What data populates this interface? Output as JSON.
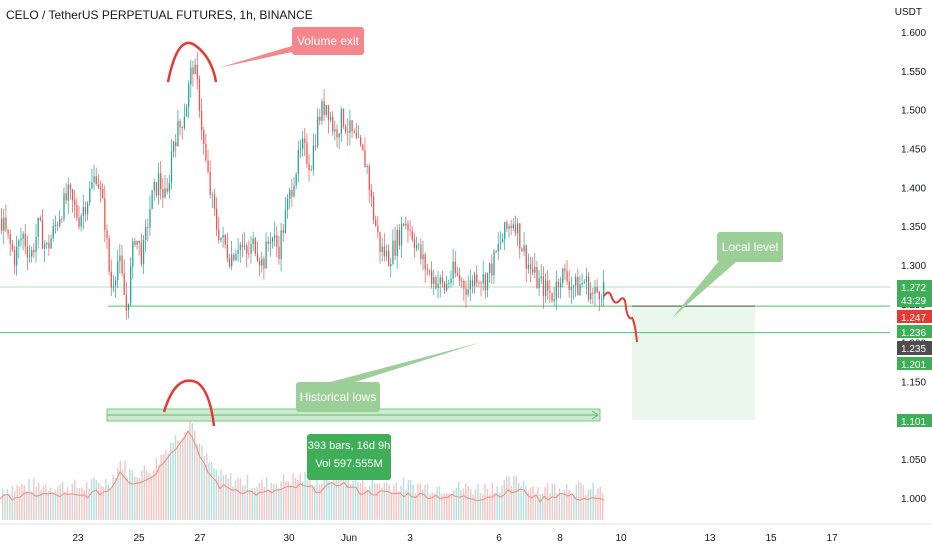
{
  "header": {
    "title": "CELO / TetherUS PERPETUAL FUTURES, 1h, BINANCE",
    "currency": "USDT"
  },
  "colors": {
    "up": "#26a69a",
    "down": "#ef5350",
    "level_line": "#5cbf6b",
    "callout_red": "#f4868c",
    "callout_green": "#9ccf97",
    "stat_box": "#3fae59",
    "price_last": "#e53935",
    "price_gray": "#4d4d4d",
    "price_green": "#3fae59"
  },
  "annotations": {
    "volume_exit": "Volume exit",
    "local_level": "Local level",
    "historical_lows": "Historical lows",
    "range_bars": "393 bars, 16d 9h",
    "range_vol": "Vol 597.555M"
  },
  "price_labels": {
    "p1": "1.272",
    "countdown": "43:29",
    "p2": "1.247",
    "p3": "1.236",
    "p4": "1.235",
    "p5": "1.201",
    "p6": "1.101"
  },
  "chart_data": {
    "type": "candlestick",
    "title": "CELO / TetherUS PERPETUAL FUTURES, 1h, BINANCE",
    "y_unit": "USDT",
    "ylim": [
      0.975,
      1.61
    ],
    "yticks": [
      1.0,
      1.05,
      1.1,
      1.15,
      1.2,
      1.25,
      1.3,
      1.35,
      1.4,
      1.45,
      1.5,
      1.55,
      1.6
    ],
    "ytick_labels": [
      "1.000",
      "1.050",
      "1.100",
      "1.150",
      "1.200",
      "1.250",
      "1.300",
      "1.350",
      "1.400",
      "1.450",
      "1.500",
      "1.550",
      "1.600"
    ],
    "xticks": [
      "23",
      "25",
      "27",
      "30",
      "Jun",
      "3",
      "6",
      "8",
      "10",
      "13",
      "15",
      "17"
    ],
    "price_path": [
      [
        0,
        1.36
      ],
      [
        8,
        1.33
      ],
      [
        14,
        1.31
      ],
      [
        22,
        1.34
      ],
      [
        30,
        1.31
      ],
      [
        38,
        1.35
      ],
      [
        46,
        1.32
      ],
      [
        52,
        1.34
      ],
      [
        60,
        1.37
      ],
      [
        68,
        1.39
      ],
      [
        78,
        1.36
      ],
      [
        88,
        1.39
      ],
      [
        96,
        1.42
      ],
      [
        104,
        1.36
      ],
      [
        110,
        1.27
      ],
      [
        118,
        1.31
      ],
      [
        126,
        1.24
      ],
      [
        134,
        1.34
      ],
      [
        142,
        1.31
      ],
      [
        150,
        1.38
      ],
      [
        158,
        1.41
      ],
      [
        166,
        1.38
      ],
      [
        172,
        1.46
      ],
      [
        180,
        1.48
      ],
      [
        186,
        1.51
      ],
      [
        192,
        1.56
      ],
      [
        198,
        1.52
      ],
      [
        204,
        1.44
      ],
      [
        210,
        1.39
      ],
      [
        216,
        1.35
      ],
      [
        222,
        1.33
      ],
      [
        230,
        1.31
      ],
      [
        238,
        1.33
      ],
      [
        246,
        1.31
      ],
      [
        254,
        1.33
      ],
      [
        262,
        1.3
      ],
      [
        270,
        1.34
      ],
      [
        278,
        1.32
      ],
      [
        286,
        1.37
      ],
      [
        294,
        1.42
      ],
      [
        302,
        1.45
      ],
      [
        310,
        1.43
      ],
      [
        318,
        1.49
      ],
      [
        326,
        1.51
      ],
      [
        334,
        1.47
      ],
      [
        342,
        1.49
      ],
      [
        350,
        1.47
      ],
      [
        358,
        1.45
      ],
      [
        366,
        1.43
      ],
      [
        372,
        1.37
      ],
      [
        380,
        1.32
      ],
      [
        388,
        1.31
      ],
      [
        396,
        1.33
      ],
      [
        404,
        1.36
      ],
      [
        412,
        1.34
      ],
      [
        420,
        1.31
      ],
      [
        428,
        1.29
      ],
      [
        436,
        1.28
      ],
      [
        444,
        1.27
      ],
      [
        452,
        1.29
      ],
      [
        460,
        1.28
      ],
      [
        468,
        1.27
      ],
      [
        476,
        1.29
      ],
      [
        484,
        1.28
      ],
      [
        492,
        1.3
      ],
      [
        500,
        1.33
      ],
      [
        508,
        1.35
      ],
      [
        514,
        1.36
      ],
      [
        520,
        1.33
      ],
      [
        528,
        1.3
      ],
      [
        536,
        1.28
      ],
      [
        544,
        1.27
      ],
      [
        552,
        1.26
      ],
      [
        560,
        1.29
      ],
      [
        568,
        1.28
      ],
      [
        576,
        1.27
      ],
      [
        584,
        1.28
      ],
      [
        592,
        1.26
      ],
      [
        600,
        1.27
      ],
      [
        604,
        1.272
      ]
    ],
    "volume_path": [
      [
        0,
        1.01
      ],
      [
        40,
        1.015
      ],
      [
        80,
        1.012
      ],
      [
        110,
        1.02
      ],
      [
        120,
        1.045
      ],
      [
        130,
        1.03
      ],
      [
        150,
        1.035
      ],
      [
        160,
        1.05
      ],
      [
        170,
        1.07
      ],
      [
        180,
        1.08
      ],
      [
        190,
        1.1
      ],
      [
        200,
        1.06
      ],
      [
        210,
        1.04
      ],
      [
        220,
        1.025
      ],
      [
        240,
        1.02
      ],
      [
        260,
        1.015
      ],
      [
        280,
        1.02
      ],
      [
        300,
        1.025
      ],
      [
        320,
        1.02
      ],
      [
        340,
        1.03
      ],
      [
        360,
        1.018
      ],
      [
        400,
        1.015
      ],
      [
        440,
        1.012
      ],
      [
        480,
        1.01
      ],
      [
        520,
        1.02
      ],
      [
        540,
        1.008
      ],
      [
        560,
        1.015
      ],
      [
        580,
        1.01
      ],
      [
        604,
        1.006
      ]
    ],
    "levels": {
      "local_level": 1.247,
      "historical_lows": 1.213
    },
    "projection": {
      "from": 1.272,
      "to": 1.213
    },
    "range_box": {
      "bars": 393,
      "duration": "16d 9h",
      "volume": "597.555M"
    }
  }
}
